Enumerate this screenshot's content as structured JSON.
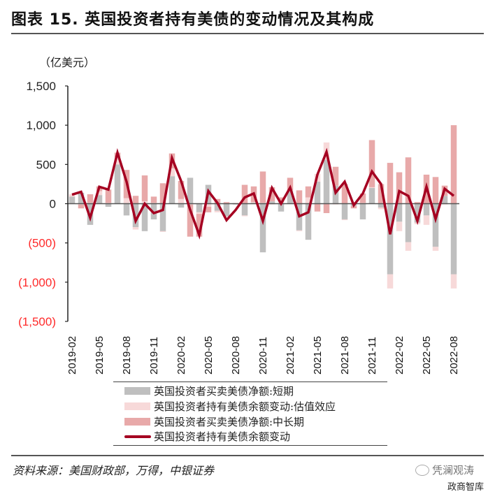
{
  "header": {
    "title": "图表 15. 英国投资者持有美债的变动情况及其构成",
    "unit": "（亿美元）"
  },
  "legend": {
    "items": [
      {
        "label": "英国投资者买卖美债净额:短期",
        "color": "#bfbfbf",
        "kind": "bar"
      },
      {
        "label": "英国投资者持有美债余额变动:估值效应",
        "color": "#f7d9d9",
        "kind": "bar"
      },
      {
        "label": "英国投资者买卖美债净额:中长期",
        "color": "#e8a9a9",
        "kind": "bar"
      },
      {
        "label": "英国投资者持有美债余额变动",
        "color": "#a50021",
        "kind": "line"
      }
    ]
  },
  "footer": {
    "source": "资料来源：美国财政部，万得，中银证券",
    "watermark": "凭澜观涛",
    "watermark2": "政商智库"
  },
  "colors": {
    "short_term": "#bfbfbf",
    "valuation": "#f7d9d9",
    "long_term": "#e8a9a9",
    "total_line": "#a50021",
    "negative_tick": "#ff2a2a",
    "positive_tick": "#222222"
  },
  "chart_data": {
    "type": "bar",
    "title": "英国投资者持有美债的变动情况及其构成",
    "ylabel": "亿美元",
    "xlabel": "",
    "ylim": [
      -1500,
      1500
    ],
    "yticks": [
      1500,
      1000,
      500,
      0,
      -500,
      -1000,
      -1500
    ],
    "ytick_labels": [
      "1,500",
      "1,000",
      "500",
      "0",
      "(500)",
      "(1,000)",
      "(1,500)"
    ],
    "xtick_labels": [
      "2019-02",
      "2019-05",
      "2019-08",
      "2019-11",
      "2020-02",
      "2020-05",
      "2020-08",
      "2020-11",
      "2021-02",
      "2021-05",
      "2021-08",
      "2021-11",
      "2022-02",
      "2022-05",
      "2022-08"
    ],
    "grid": false,
    "legend_position": "bottom",
    "stacked": true,
    "categories": [
      "2019-02",
      "2019-03",
      "2019-04",
      "2019-05",
      "2019-06",
      "2019-07",
      "2019-08",
      "2019-09",
      "2019-10",
      "2019-11",
      "2019-12",
      "2020-01",
      "2020-02",
      "2020-03",
      "2020-04",
      "2020-05",
      "2020-06",
      "2020-07",
      "2020-08",
      "2020-09",
      "2020-10",
      "2020-11",
      "2020-12",
      "2021-01",
      "2021-02",
      "2021-03",
      "2021-04",
      "2021-05",
      "2021-06",
      "2021-07",
      "2021-08",
      "2021-09",
      "2021-10",
      "2021-11",
      "2021-12",
      "2022-01",
      "2022-02",
      "2022-03",
      "2022-04",
      "2022-05",
      "2022-06",
      "2022-07",
      "2022-08"
    ],
    "series": [
      {
        "name": "英国投资者买卖美债净额:短期",
        "type": "bar",
        "values": [
          90,
          140,
          -270,
          110,
          -40,
          500,
          -150,
          -300,
          -350,
          -200,
          -350,
          350,
          -50,
          330,
          -110,
          240,
          -90,
          -160,
          -10,
          -150,
          10,
          -620,
          30,
          -100,
          160,
          -340,
          -460,
          280,
          560,
          230,
          -200,
          -30,
          -200,
          200,
          -50,
          -900,
          -230,
          -490,
          -240,
          -150,
          -550,
          100,
          -900
        ]
      },
      {
        "name": "英国投资者持有美债余额变动:估值效应",
        "type": "bar",
        "values": [
          30,
          -10,
          10,
          50,
          10,
          90,
          70,
          -30,
          30,
          10,
          -10,
          100,
          60,
          -10,
          -20,
          -40,
          -20,
          -10,
          10,
          -10,
          10,
          10,
          -10,
          20,
          10,
          -10,
          80,
          100,
          220,
          -10,
          -10,
          20,
          10,
          10,
          -20,
          -180,
          -120,
          -110,
          -20,
          -120,
          -50,
          -10,
          -180
        ]
      },
      {
        "name": "英国投资者买卖美债净额:中长期",
        "type": "bar",
        "values": [
          0,
          -50,
          110,
          60,
          170,
          60,
          360,
          100,
          330,
          80,
          260,
          190,
          230,
          -410,
          -290,
          -70,
          60,
          20,
          0,
          240,
          200,
          400,
          180,
          60,
          160,
          170,
          140,
          -100,
          -120,
          240,
          250,
          -30,
          120,
          600,
          250,
          520,
          400,
          590,
          20,
          370,
          340,
          130,
          1000
        ]
      },
      {
        "name": "英国投资者持有美债余额变动",
        "type": "line",
        "values": [
          115,
          150,
          -180,
          215,
          180,
          650,
          280,
          -220,
          0,
          -120,
          -80,
          580,
          290,
          -80,
          -400,
          160,
          10,
          -210,
          -80,
          80,
          130,
          -220,
          200,
          0,
          205,
          -160,
          -110,
          370,
          660,
          140,
          280,
          -20,
          130,
          410,
          250,
          -390,
          160,
          100,
          -220,
          215,
          -195,
          190,
          100
        ]
      }
    ]
  }
}
